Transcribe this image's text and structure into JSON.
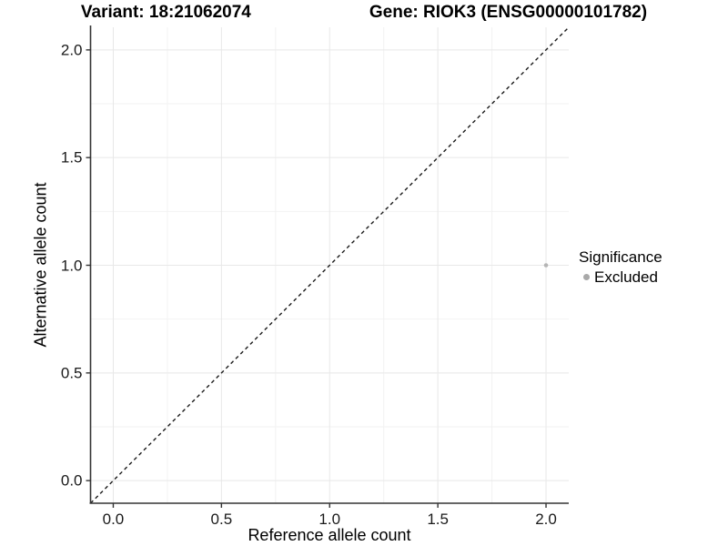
{
  "title": {
    "variant": "Variant: 18:21062074",
    "gene": "Gene: RIOK3 (ENSG00000101782)"
  },
  "chart_data": {
    "type": "scatter",
    "title": "Variant: 18:21062074    Gene: RIOK3 (ENSG00000101782)",
    "xlabel": "Reference allele count",
    "ylabel": "Alternative allele count",
    "xlim": [
      -0.105,
      2.105
    ],
    "ylim": [
      -0.105,
      2.105
    ],
    "x_ticks": {
      "values": [
        0,
        0.5,
        1,
        1.5,
        2
      ],
      "labels": [
        "0.0",
        "0.5",
        "1.0",
        "1.5",
        "2.0"
      ]
    },
    "y_ticks": {
      "values": [
        0,
        0.5,
        1,
        1.5,
        2
      ],
      "labels": [
        "0.0",
        "0.5",
        "1.0",
        "1.5",
        "2.0"
      ]
    },
    "grid": {
      "show": true,
      "major_values": [
        0,
        0.5,
        1,
        1.5,
        2
      ],
      "minor_values": [
        0.25,
        0.75,
        1.25,
        1.75
      ],
      "major_color": "#e8e8e8",
      "minor_color": "#f2f2f2"
    },
    "points": [
      {
        "x": 2.0,
        "y": 1.0,
        "series": "Excluded",
        "color": "#b5b5b5",
        "radius": 2.3
      }
    ],
    "reference_line": {
      "slope": 1,
      "intercept": 0,
      "style": "dashed",
      "color": "#1a1a1a"
    },
    "legend": {
      "title": "Significance",
      "position": "right",
      "items": [
        {
          "label": "Excluded",
          "color": "#a9a9a9",
          "marker": "circle"
        }
      ]
    }
  },
  "colors": {
    "background": "#ffffff",
    "axis_line": "#333333",
    "tick_mark": "#333333",
    "tick_text": "#1a1a1a"
  }
}
